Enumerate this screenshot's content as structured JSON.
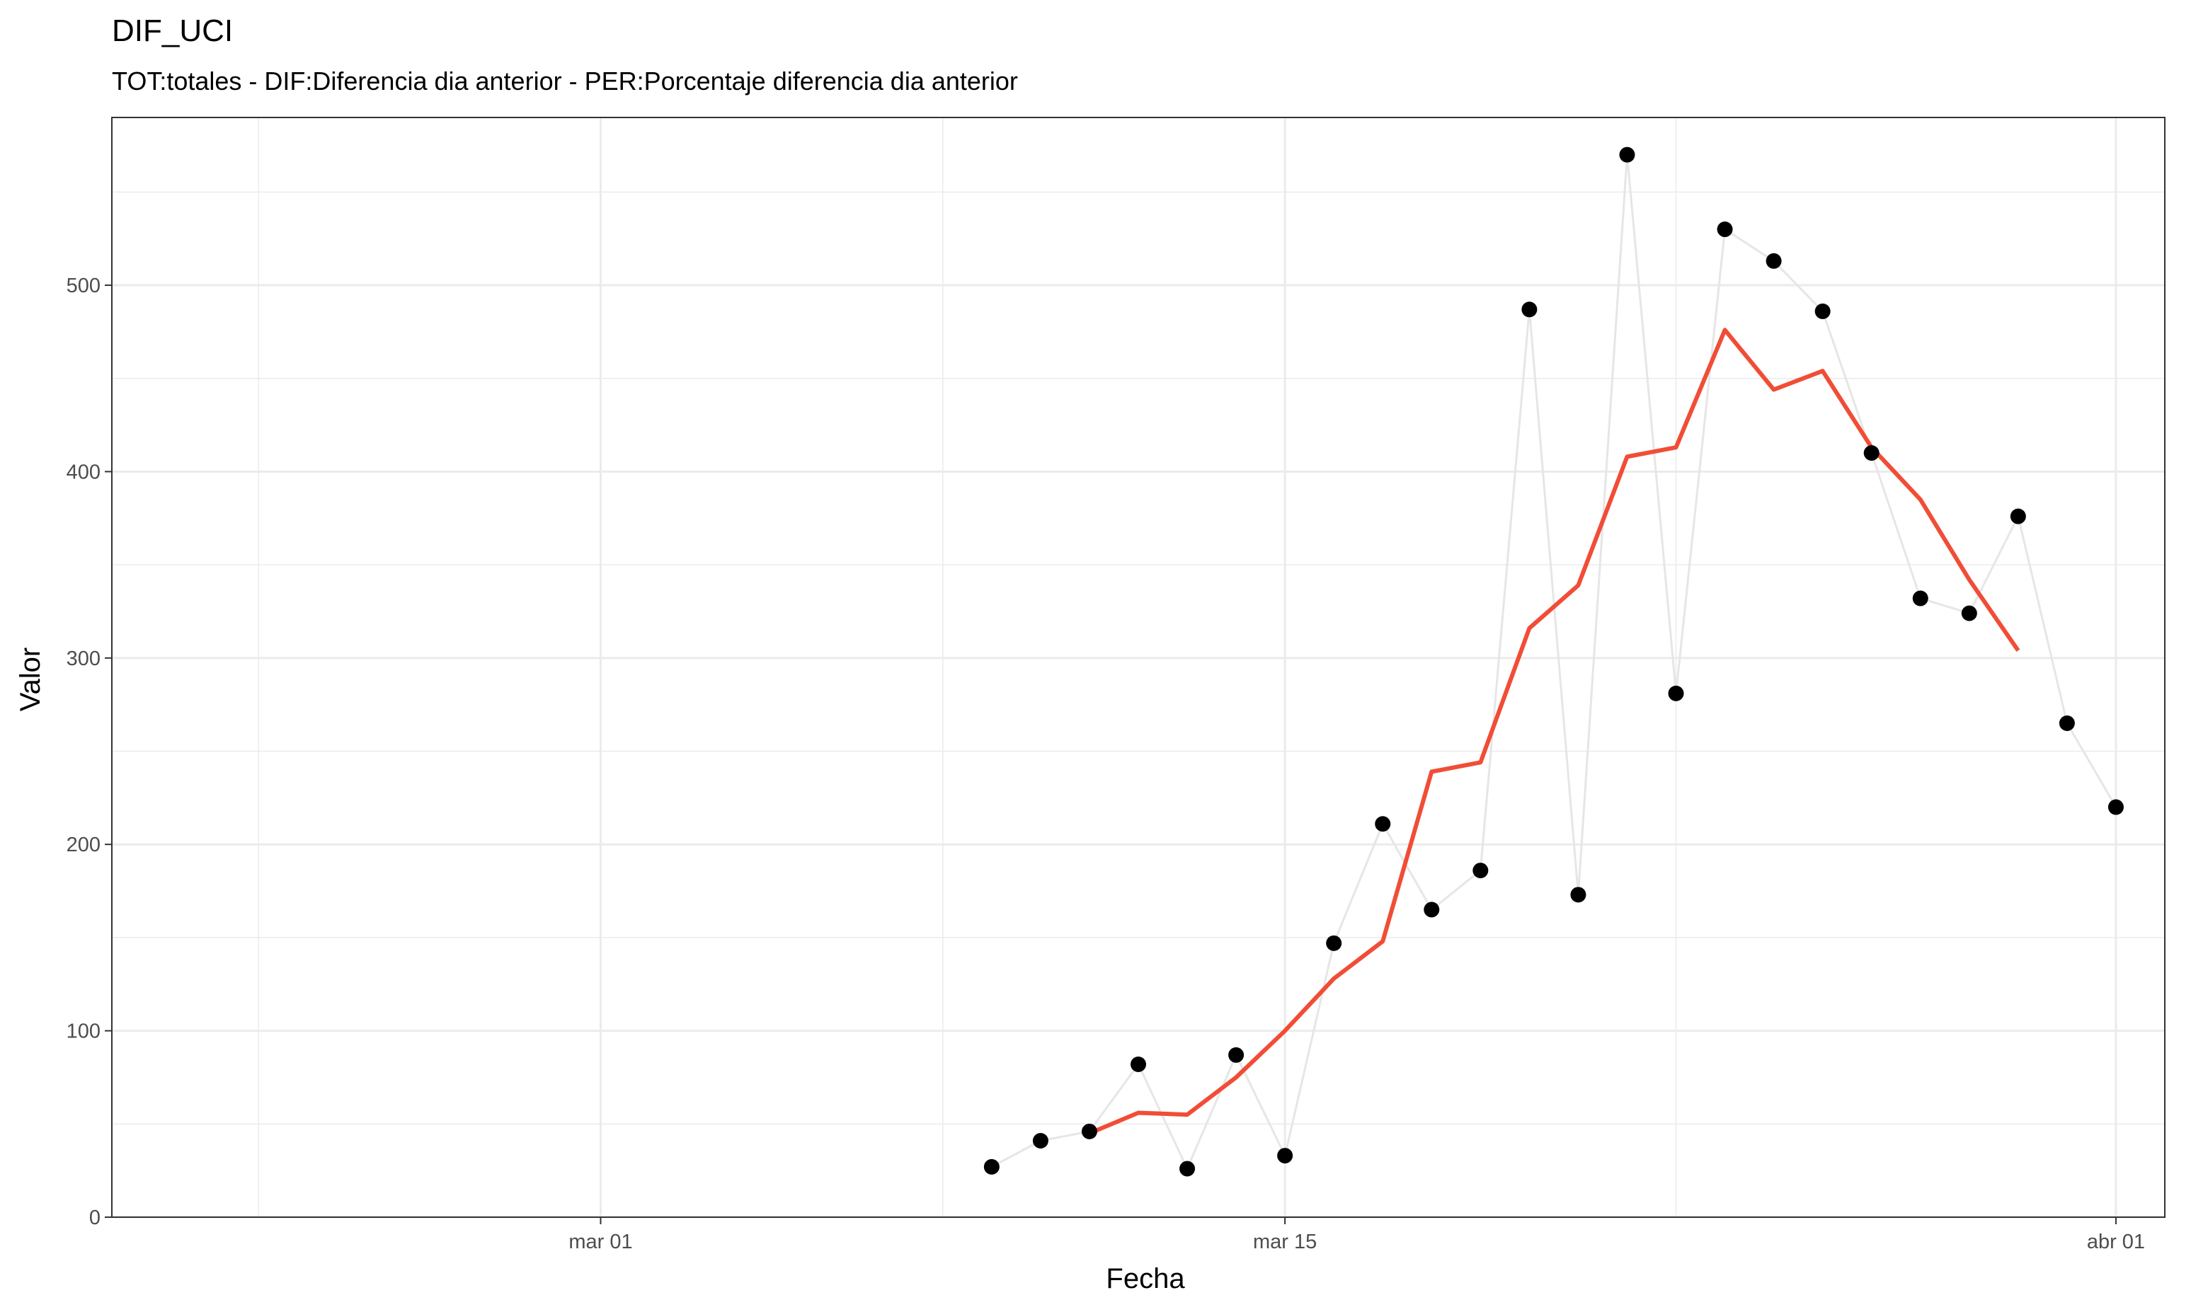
{
  "chart_data": {
    "type": "line",
    "title": "DIF_UCI",
    "subtitle": "TOT:totales - DIF:Diferencia dia anterior - PER:Porcentaje diferencia dia anterior",
    "xlabel": "Fecha",
    "ylabel": "Valor",
    "x_axis_type": "date",
    "xlim": [
      "2020-02-20",
      "2020-04-02"
    ],
    "ylim": [
      0,
      590
    ],
    "x_ticks": [
      {
        "date": "2020-03-01",
        "label": "mar 01"
      },
      {
        "date": "2020-03-15",
        "label": "mar 15"
      },
      {
        "date": "2020-04-01",
        "label": "abr 01"
      }
    ],
    "x_minor_ticks": [
      "2020-02-23",
      "2020-03-08",
      "2020-03-23"
    ],
    "y_ticks": [
      0,
      100,
      200,
      300,
      400,
      500
    ],
    "y_minor_ticks": [
      50,
      150,
      250,
      350,
      450,
      550
    ],
    "grid": true,
    "colors": {
      "points": "#000000",
      "connector_line": "#e6e6e6",
      "smoothed_line": "#f14d36",
      "grid": "#ebebeb",
      "panel_border": "#333333"
    },
    "series": [
      {
        "style": "points-with-line",
        "x": [
          "2020-03-09",
          "2020-03-10",
          "2020-03-11",
          "2020-03-12",
          "2020-03-13",
          "2020-03-14",
          "2020-03-15",
          "2020-03-16",
          "2020-03-17",
          "2020-03-18",
          "2020-03-19",
          "2020-03-20",
          "2020-03-21",
          "2020-03-22",
          "2020-03-23",
          "2020-03-24",
          "2020-03-25",
          "2020-03-26",
          "2020-03-27",
          "2020-03-28",
          "2020-03-29",
          "2020-03-30",
          "2020-03-31",
          "2020-04-01"
        ],
        "y": [
          27,
          41,
          46,
          82,
          26,
          87,
          33,
          147,
          211,
          165,
          186,
          487,
          173,
          570,
          281,
          530,
          513,
          486,
          410,
          332,
          324,
          376,
          265,
          220
        ]
      },
      {
        "style": "line",
        "x": [
          "2020-03-11",
          "2020-03-12",
          "2020-03-13",
          "2020-03-14",
          "2020-03-15",
          "2020-03-16",
          "2020-03-17",
          "2020-03-18",
          "2020-03-19",
          "2020-03-20",
          "2020-03-21",
          "2020-03-22",
          "2020-03-23",
          "2020-03-24",
          "2020-03-25",
          "2020-03-26",
          "2020-03-27",
          "2020-03-28",
          "2020-03-29",
          "2020-03-30"
        ],
        "y": [
          45,
          56,
          55,
          75,
          100,
          128,
          148,
          239,
          244,
          316,
          339,
          408,
          413,
          476,
          444,
          454,
          413,
          385,
          342,
          304
        ]
      }
    ]
  }
}
